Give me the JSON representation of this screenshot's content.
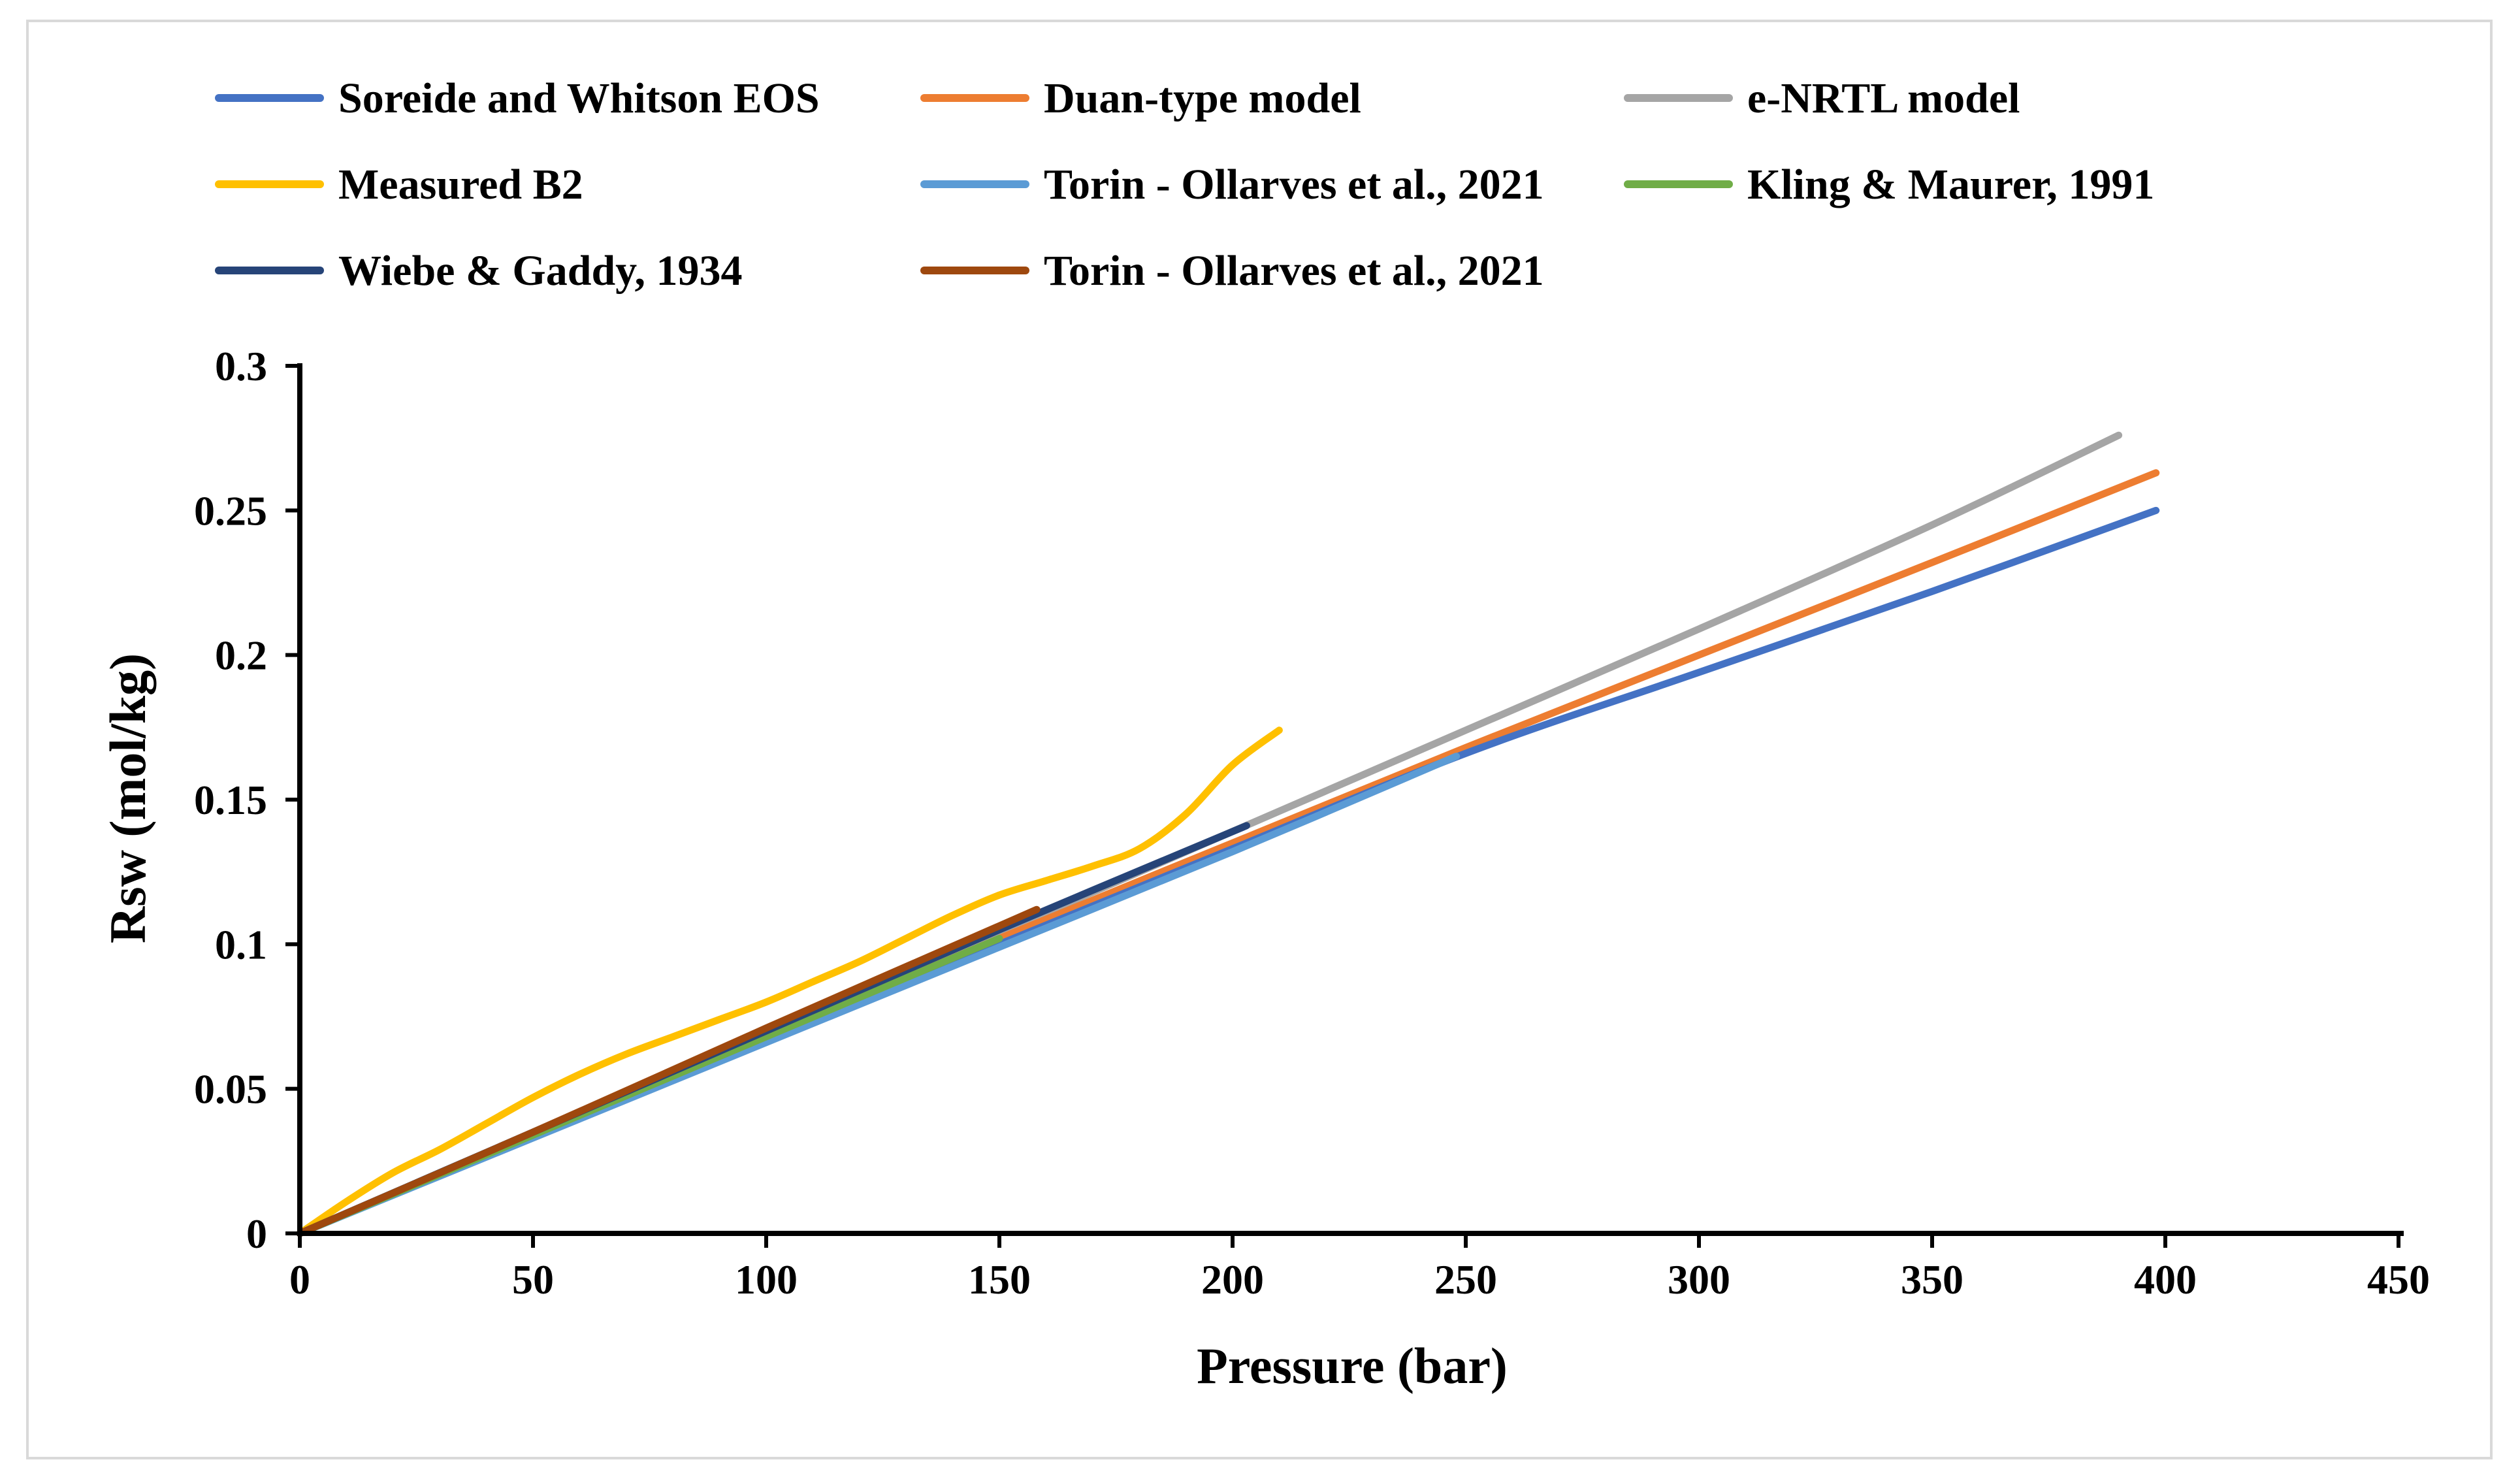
{
  "chart_data": {
    "type": "line",
    "title": "",
    "xlabel": "Pressure (bar)",
    "ylabel": "Rsw (mol/kg)",
    "xlim": [
      0,
      450
    ],
    "ylim": [
      0,
      0.3
    ],
    "xticks": [
      0,
      50,
      100,
      150,
      200,
      250,
      300,
      350,
      400,
      450
    ],
    "yticks": [
      0,
      0.05,
      0.1,
      0.15,
      0.2,
      0.25,
      0.3
    ],
    "xtick_labels": [
      "0",
      "50",
      "100",
      "150",
      "200",
      "250",
      "300",
      "350",
      "400",
      "450"
    ],
    "ytick_labels": [
      "0",
      "0.05",
      "0.1",
      "0.15",
      "0.2",
      "0.25",
      "0.3"
    ],
    "grid": false,
    "legend_position": "top",
    "series": [
      {
        "name": "Soreide and Whitson EOS",
        "color": "#4472c4",
        "x": [
          0,
          50,
          100,
          150,
          200,
          250,
          300,
          350,
          398
        ],
        "y": [
          0,
          0.034,
          0.067,
          0.1,
          0.133,
          0.166,
          0.194,
          0.222,
          0.25
        ]
      },
      {
        "name": "Duan-type model",
        "color": "#ed7d31",
        "x": [
          0,
          50,
          100,
          150,
          200,
          250,
          300,
          350,
          398
        ],
        "y": [
          0,
          0.034,
          0.068,
          0.102,
          0.135,
          0.168,
          0.2,
          0.232,
          0.263
        ]
      },
      {
        "name": "e-NRTL model",
        "color": "#a5a5a5",
        "x": [
          0,
          50,
          100,
          150,
          200,
          250,
          300,
          350,
          390
        ],
        "y": [
          0,
          0.035,
          0.07,
          0.104,
          0.139,
          0.174,
          0.209,
          0.245,
          0.276
        ]
      },
      {
        "name": "Measured B2",
        "color": "#ffc000",
        "x": [
          0,
          10,
          20,
          30,
          40,
          50,
          60,
          70,
          80,
          90,
          100,
          110,
          120,
          130,
          140,
          150,
          160,
          170,
          180,
          190,
          200,
          210
        ],
        "y": [
          0,
          0.011,
          0.021,
          0.029,
          0.038,
          0.047,
          0.055,
          0.062,
          0.068,
          0.074,
          0.08,
          0.087,
          0.094,
          0.102,
          0.11,
          0.117,
          0.122,
          0.127,
          0.133,
          0.145,
          0.162,
          0.174
        ]
      },
      {
        "name": "Torin - Ollarves et al., 2021",
        "color": "#5b9bd5",
        "x": [
          0,
          50,
          100,
          150,
          200,
          248
        ],
        "y": [
          0,
          0.033,
          0.066,
          0.099,
          0.132,
          0.165
        ]
      },
      {
        "name": "Kling & Maurer, 1991",
        "color": "#70ad47",
        "x": [
          0,
          50,
          100,
          150
        ],
        "y": [
          0,
          0.034,
          0.068,
          0.102
        ]
      },
      {
        "name": "Wiebe & Gaddy, 1934",
        "color": "#264478",
        "x": [
          0,
          50,
          100,
          150,
          203
        ],
        "y": [
          0,
          0.035,
          0.07,
          0.105,
          0.141
        ]
      },
      {
        "name": "Torin - Ollarves et al., 2021",
        "color": "#9e480e",
        "x": [
          0,
          50,
          100,
          158
        ],
        "y": [
          0,
          0.035,
          0.071,
          0.112
        ]
      }
    ]
  }
}
